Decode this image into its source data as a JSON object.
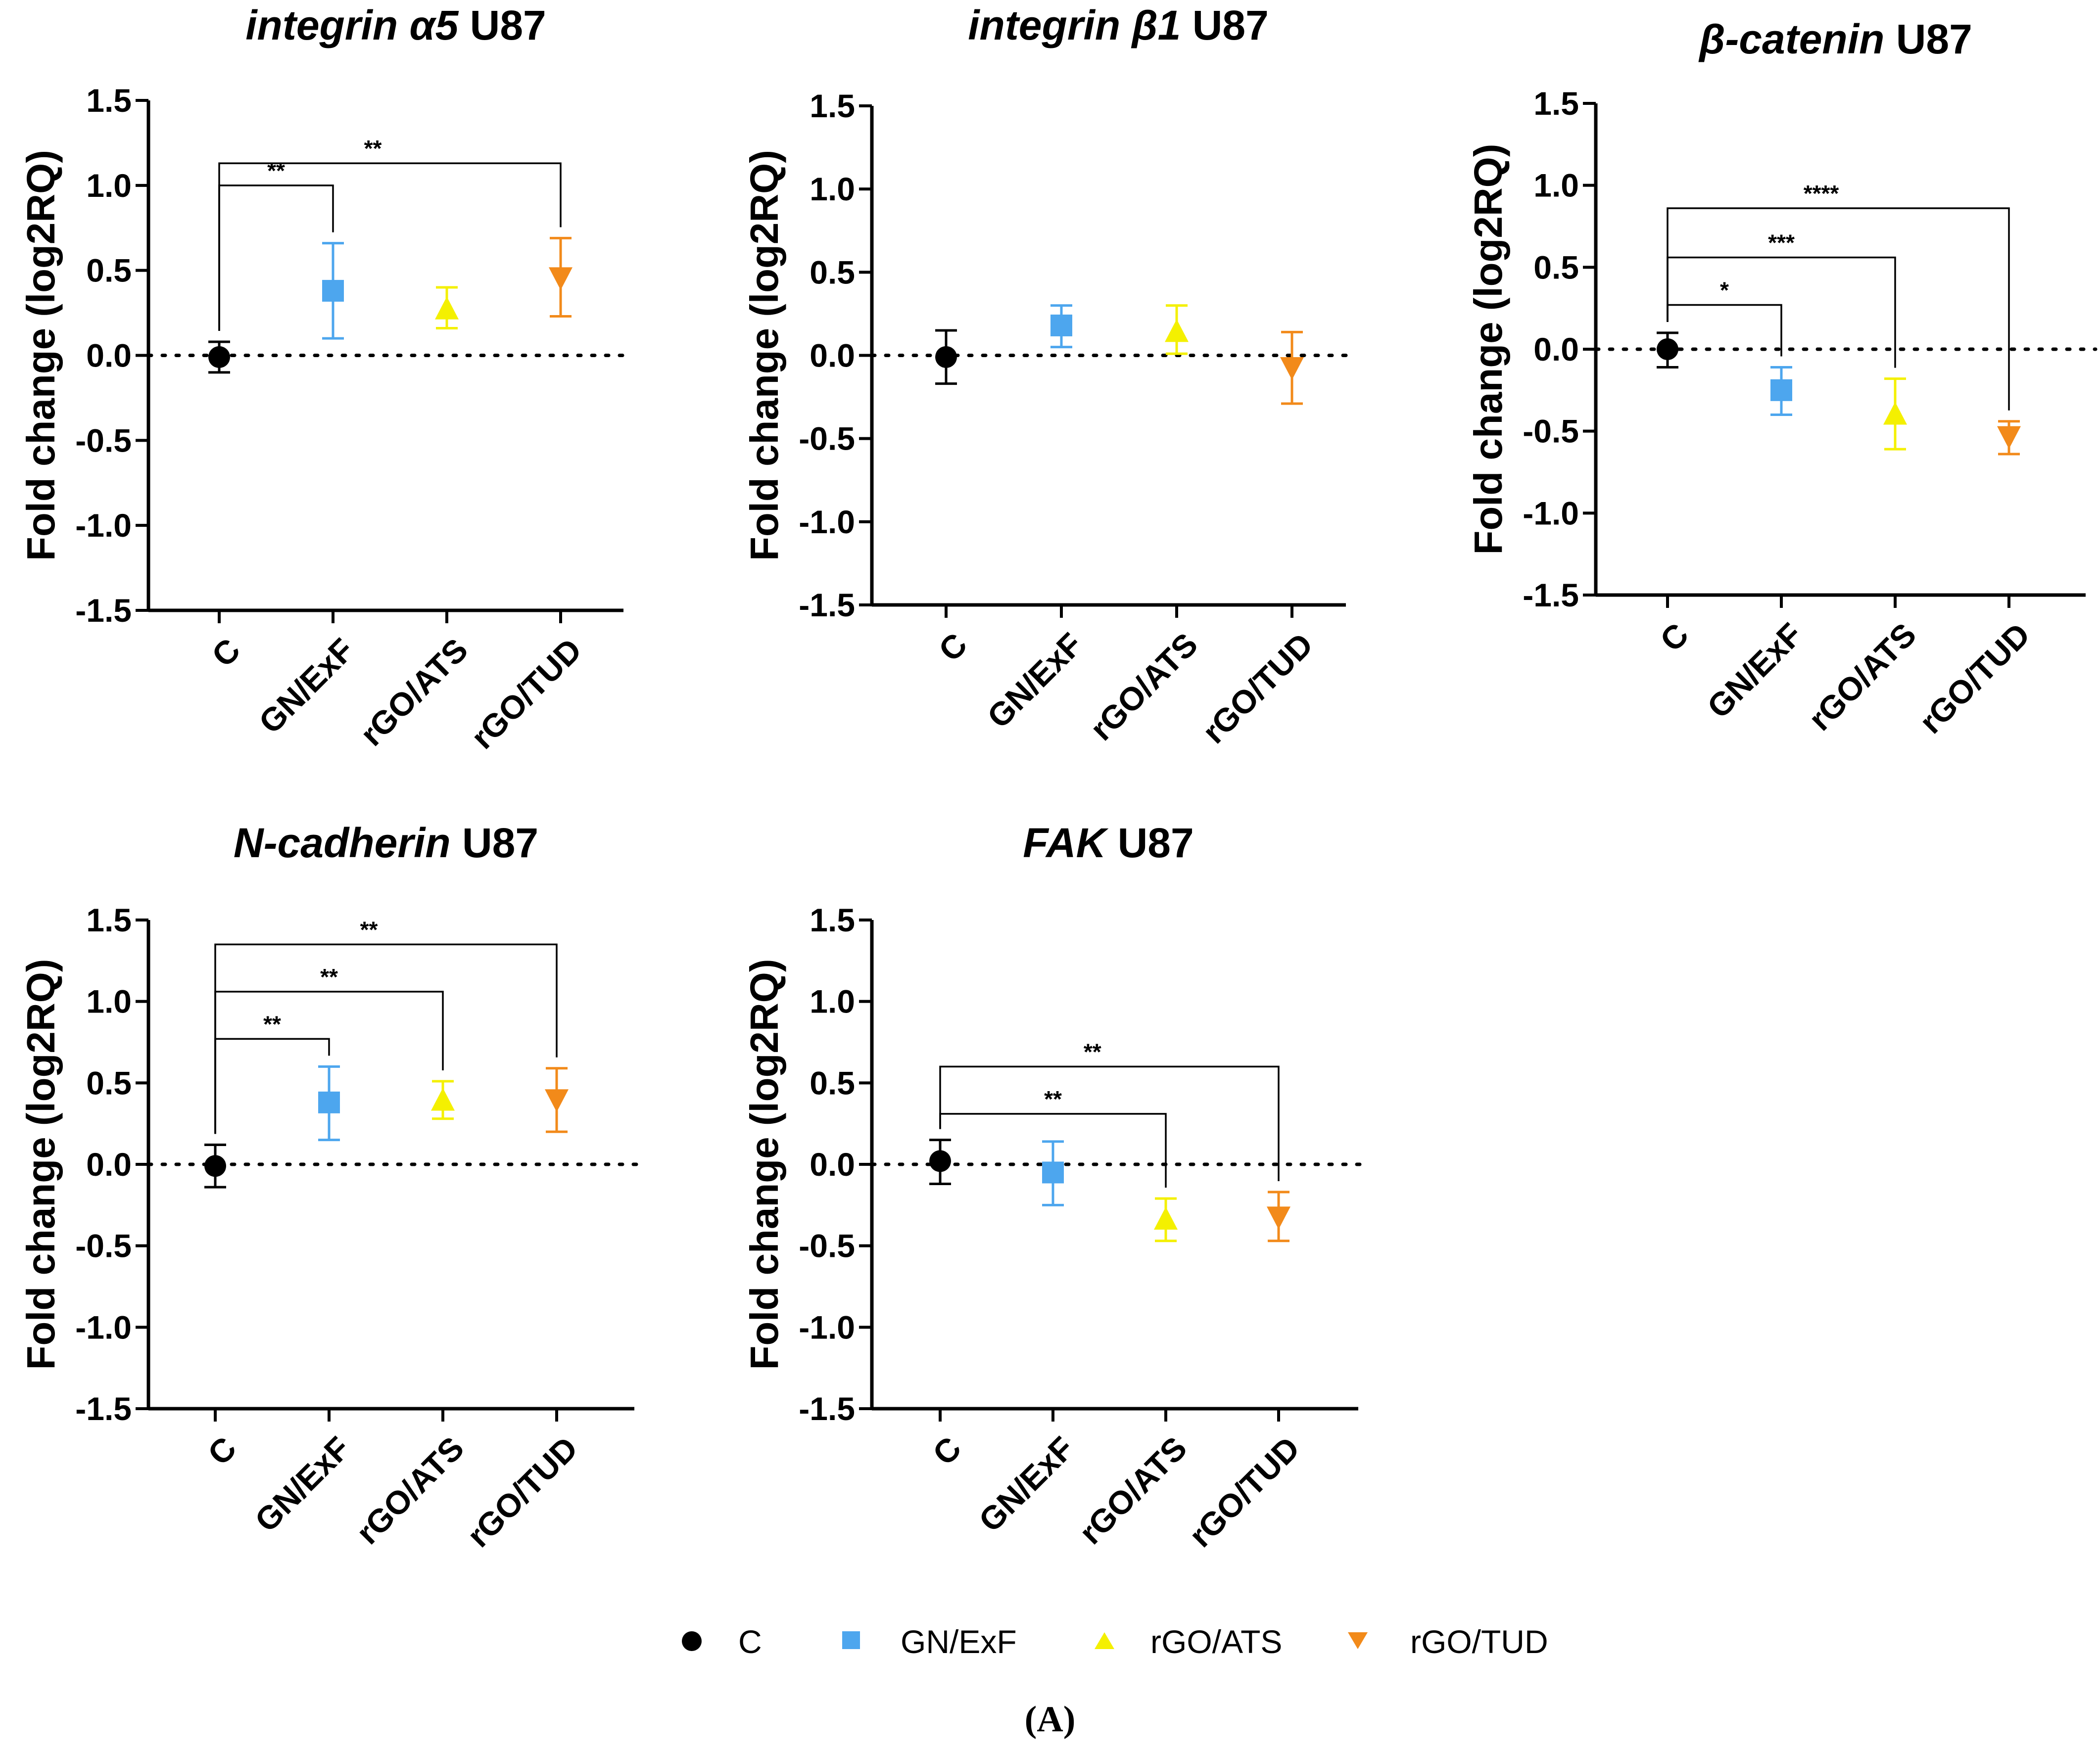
{
  "figure_label": "(A)",
  "legend": [
    {
      "name": "C",
      "color": "#000000",
      "marker": "circle"
    },
    {
      "name": "GN/ExF",
      "color": "#4da6ee",
      "marker": "square"
    },
    {
      "name": "rGO/ATS",
      "color": "#f4f000",
      "marker": "triangle-up"
    },
    {
      "name": "rGO/TUD",
      "color": "#f28a1a",
      "marker": "triangle-down"
    }
  ],
  "chart_data": [
    {
      "type": "scatter",
      "title_gene": "integrin α5",
      "title_cell": " U87",
      "ylabel": "Fold change (log2RQ)",
      "ylim": [
        -1.5,
        1.5
      ],
      "yticks": [
        "1.5",
        "1.0",
        "0.5",
        "0.0",
        "-0.5",
        "-1.0",
        "-1.5"
      ],
      "categories": [
        "C",
        "GN/ExF",
        "rGO/ATS",
        "rGO/TUD"
      ],
      "means": [
        -0.01,
        0.38,
        0.27,
        0.46
      ],
      "errors": [
        [
          -0.1,
          0.08
        ],
        [
          0.1,
          0.66
        ],
        [
          0.16,
          0.4
        ],
        [
          0.23,
          0.69
        ]
      ],
      "significance": [
        {
          "from": 0,
          "to": 1,
          "label": "**",
          "level": 1.0
        },
        {
          "from": 0,
          "to": 3,
          "label": "**",
          "level": 1.13
        }
      ]
    },
    {
      "type": "scatter",
      "title_gene": "integrin β1",
      "title_cell": " U87",
      "ylabel": "Fold change (log2RQ)",
      "ylim": [
        -1.5,
        1.5
      ],
      "yticks": [
        "1.5",
        "1.0",
        "0.5",
        "0.0",
        "-0.5",
        "-1.0",
        "-1.5"
      ],
      "categories": [
        "C",
        "GN/ExF",
        "rGO/ATS",
        "rGO/TUD"
      ],
      "means": [
        -0.01,
        0.18,
        0.14,
        -0.07
      ],
      "errors": [
        [
          -0.17,
          0.15
        ],
        [
          0.05,
          0.3
        ],
        [
          0.01,
          0.3
        ],
        [
          -0.29,
          0.14
        ]
      ],
      "significance": []
    },
    {
      "type": "scatter",
      "title_gene": "β-catenin",
      "title_cell": " U87",
      "ylabel": "Fold change (log2RQ)",
      "ylim": [
        -1.5,
        1.5
      ],
      "yticks": [
        "1.5",
        "1.0",
        "0.5",
        "0.0",
        "-0.5",
        "-1.0",
        "-1.5"
      ],
      "categories": [
        "C",
        "GN/ExF",
        "rGO/ATS",
        "rGO/TUD"
      ],
      "means": [
        0.0,
        -0.25,
        -0.4,
        -0.53
      ],
      "errors": [
        [
          -0.11,
          0.1
        ],
        [
          -0.4,
          -0.11
        ],
        [
          -0.61,
          -0.18
        ],
        [
          -0.64,
          -0.44
        ]
      ],
      "significance": [
        {
          "from": 0,
          "to": 1,
          "label": "*",
          "level": 0.27
        },
        {
          "from": 0,
          "to": 2,
          "label": "***",
          "level": 0.56
        },
        {
          "from": 0,
          "to": 3,
          "label": "****",
          "level": 0.86
        }
      ]
    },
    {
      "type": "scatter",
      "title_gene": "N-cadherin",
      "title_cell": " U87",
      "ylabel": "Fold change (log2RQ)",
      "ylim": [
        -1.5,
        1.5
      ],
      "yticks": [
        "1.5",
        "1.0",
        "0.5",
        "0.0",
        "-0.5",
        "-1.0",
        "-1.5"
      ],
      "categories": [
        "C",
        "GN/ExF",
        "rGO/ATS",
        "rGO/TUD"
      ],
      "means": [
        -0.01,
        0.38,
        0.39,
        0.4
      ],
      "errors": [
        [
          -0.14,
          0.12
        ],
        [
          0.15,
          0.6
        ],
        [
          0.28,
          0.51
        ],
        [
          0.2,
          0.59
        ]
      ],
      "significance": [
        {
          "from": 0,
          "to": 1,
          "label": "**",
          "level": 0.77
        },
        {
          "from": 0,
          "to": 2,
          "label": "**",
          "level": 1.06
        },
        {
          "from": 0,
          "to": 3,
          "label": "**",
          "level": 1.35
        }
      ]
    },
    {
      "type": "scatter",
      "title_gene": "FAK",
      "title_cell": " U87",
      "ylabel": "Fold change (log2RQ)",
      "ylim": [
        -1.5,
        1.5
      ],
      "yticks": [
        "1.5",
        "1.0",
        "0.5",
        "0.0",
        "-0.5",
        "-1.0",
        "-1.5"
      ],
      "categories": [
        "C",
        "GN/ExF",
        "rGO/ATS",
        "rGO/TUD"
      ],
      "means": [
        0.02,
        -0.05,
        -0.34,
        -0.32
      ],
      "errors": [
        [
          -0.12,
          0.15
        ],
        [
          -0.25,
          0.14
        ],
        [
          -0.47,
          -0.21
        ],
        [
          -0.47,
          -0.17
        ]
      ],
      "significance": [
        {
          "from": 0,
          "to": 2,
          "label": "**",
          "level": 0.31
        },
        {
          "from": 0,
          "to": 3,
          "label": "**",
          "level": 0.6
        }
      ]
    }
  ]
}
